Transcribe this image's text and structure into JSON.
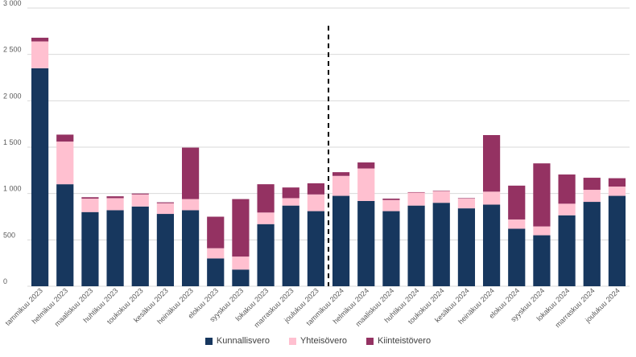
{
  "chart_data": {
    "type": "bar",
    "stacked": true,
    "title": "",
    "xlabel": "",
    "ylabel": "",
    "ylim": [
      0,
      3000
    ],
    "y_ticks": [
      0,
      500,
      1000,
      1500,
      2000,
      2500,
      3000
    ],
    "y_tick_labels": [
      "0",
      "500",
      "1 000",
      "1 500",
      "2 000",
      "2 500",
      "3 000"
    ],
    "grid": true,
    "legend_position": "bottom",
    "divider_after_category": "joulukuu 2023",
    "categories": [
      "tammikuu 2023",
      "helmikuu 2023",
      "maaliskuu 2023",
      "huhtikuu 2023",
      "toukokuu 2023",
      "kesäkuu 2023",
      "heinäkuu 2023",
      "elokuu 2023",
      "syyskuu 2023",
      "lokakuu 2023",
      "marraskuu 2023",
      "joulukuu 2023",
      "tammikuu 2024",
      "helmikuu 2024",
      "maaliskuu 2024",
      "huhtikuu 2024",
      "toukokuu 2024",
      "kesäkuu 2024",
      "heinäkuu 2024",
      "elokuu 2024",
      "syyskuu 2024",
      "lokakuu 2024",
      "marraskuu 2024",
      "joulukuu 2024"
    ],
    "series": [
      {
        "name": "Kunnallisvero",
        "color": "#17375e",
        "values": [
          2350,
          1100,
          800,
          820,
          860,
          780,
          820,
          300,
          180,
          670,
          870,
          810,
          975,
          920,
          810,
          870,
          900,
          840,
          880,
          620,
          550,
          765,
          910,
          975
        ]
      },
      {
        "name": "Yhteisövero",
        "color": "#ffc0d0",
        "values": [
          290,
          460,
          145,
          130,
          130,
          115,
          120,
          110,
          140,
          125,
          80,
          180,
          215,
          350,
          120,
          140,
          125,
          105,
          140,
          100,
          95,
          125,
          130,
          100
        ]
      },
      {
        "name": "Kiinteistövero",
        "color": "#943262",
        "values": [
          40,
          75,
          15,
          20,
          10,
          10,
          555,
          340,
          620,
          305,
          115,
          120,
          40,
          65,
          15,
          5,
          5,
          5,
          610,
          365,
          680,
          315,
          130,
          90
        ]
      }
    ]
  }
}
